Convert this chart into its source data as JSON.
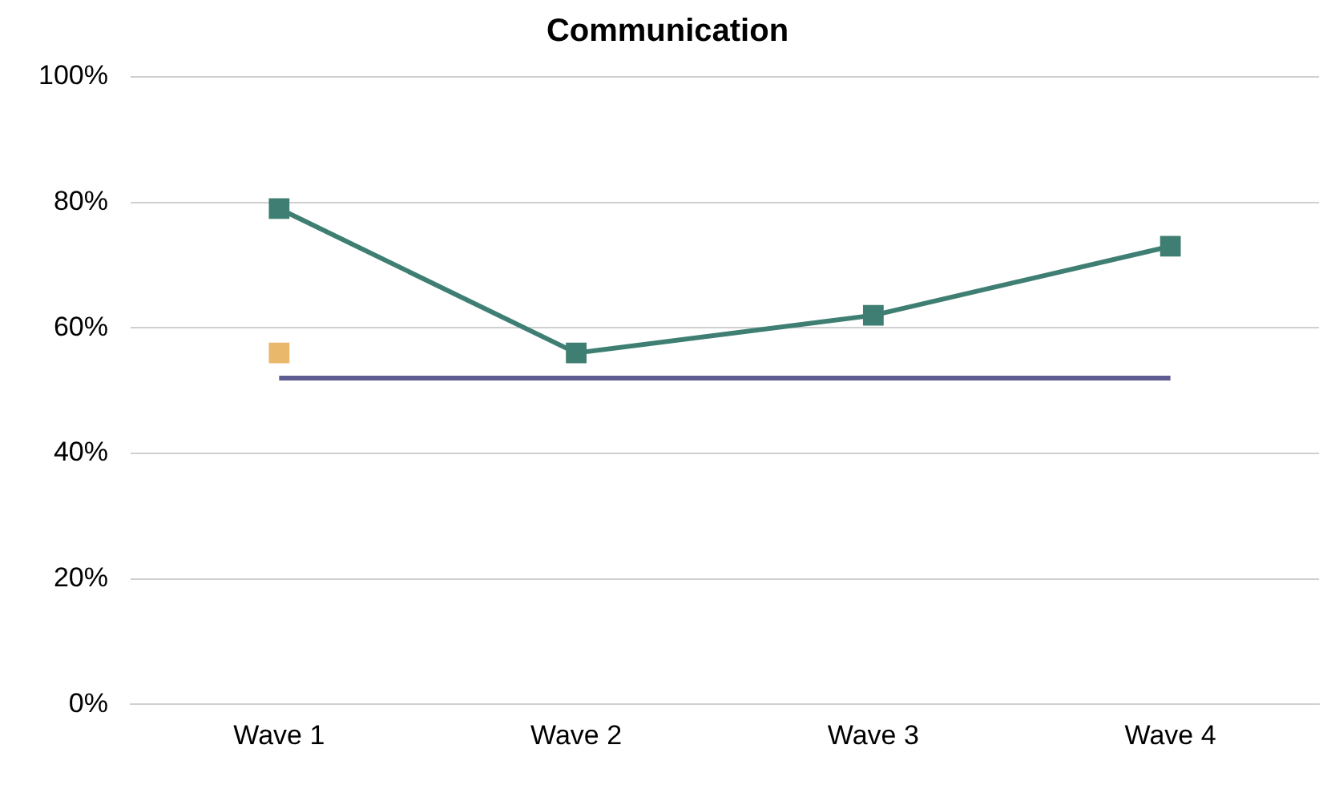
{
  "chart_data": {
    "type": "line",
    "title": "Communication",
    "categories": [
      "Wave 1",
      "Wave 2",
      "Wave 3",
      "Wave 4"
    ],
    "series": [
      {
        "color": "#3f7f73",
        "values": [
          79,
          56,
          62,
          73
        ],
        "marker": "square"
      },
      {
        "type": "scatter",
        "color": "#e9b86b",
        "values": [
          56,
          null,
          null,
          null
        ],
        "marker": "square"
      },
      {
        "color": "#5d5b8f",
        "values": [
          52,
          52,
          52,
          52
        ],
        "marker": "none"
      }
    ],
    "ylim": [
      0,
      100
    ],
    "yticks": [
      {
        "value": 0,
        "label": "0%"
      },
      {
        "value": 20,
        "label": "20%"
      },
      {
        "value": 40,
        "label": "40%"
      },
      {
        "value": 60,
        "label": "60%"
      },
      {
        "value": 80,
        "label": "80%"
      },
      {
        "value": 100,
        "label": "100%"
      }
    ],
    "grid": "y",
    "legend": false
  }
}
